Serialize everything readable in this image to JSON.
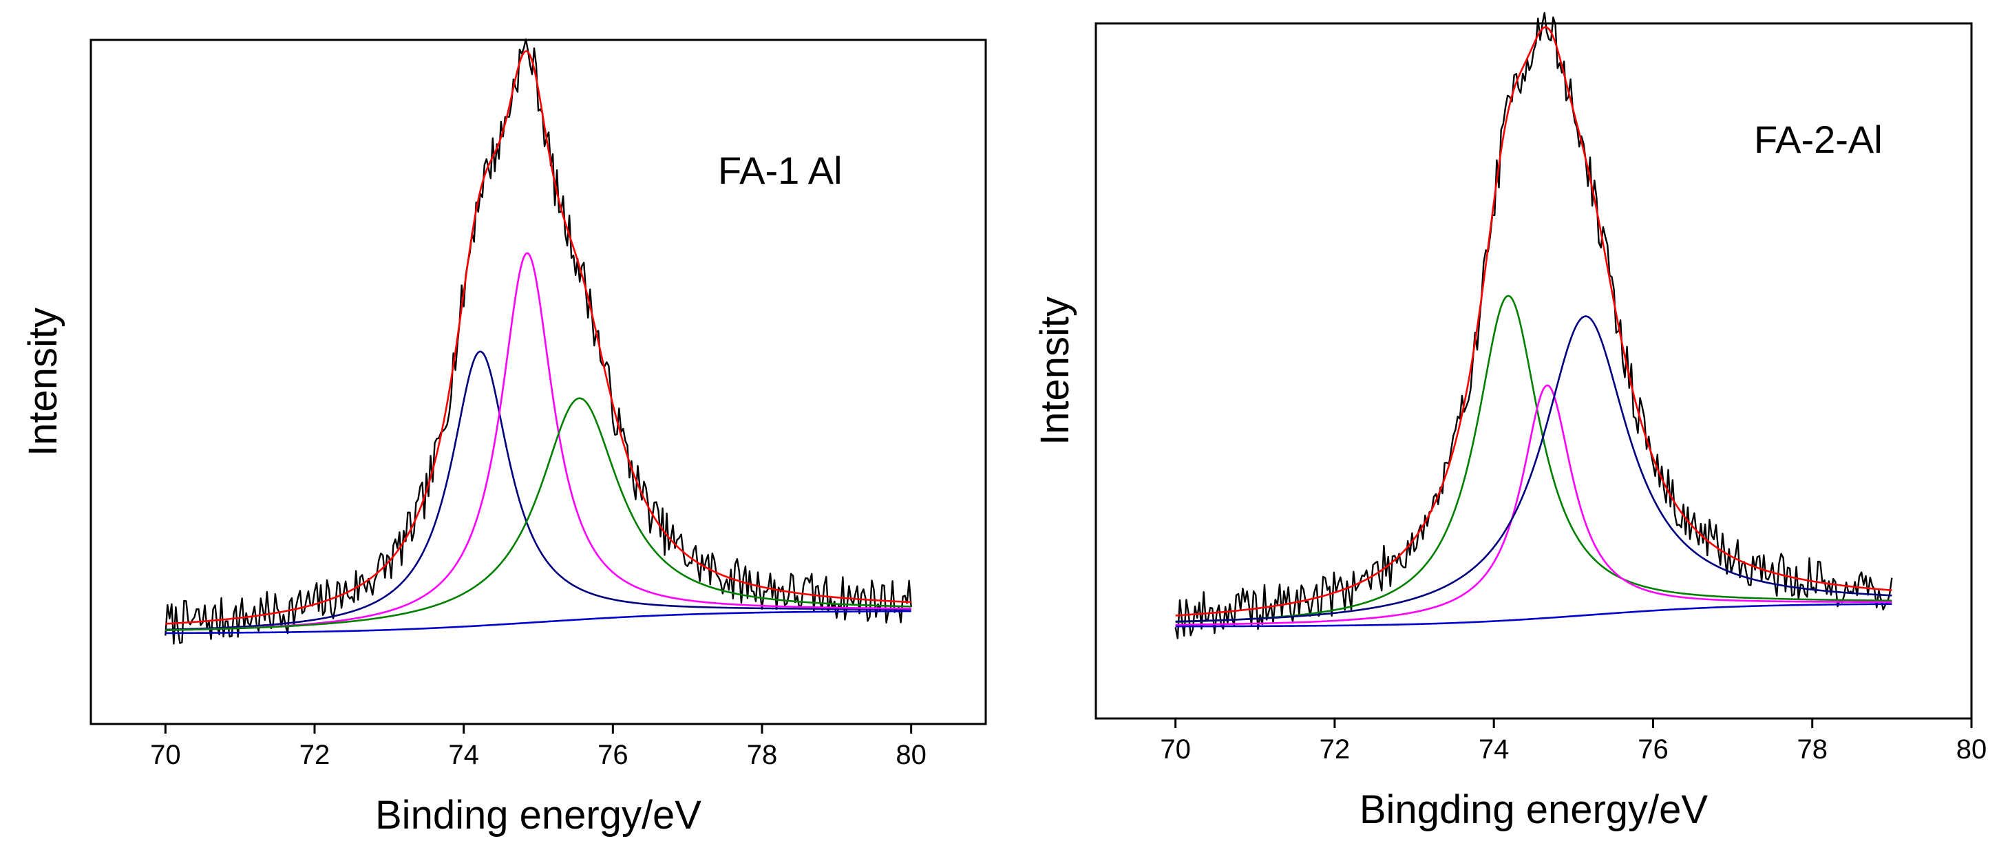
{
  "chart_data": [
    {
      "type": "line",
      "title": "",
      "annotation": "FA-1 Al",
      "xlabel": "Binding energy/eV",
      "ylabel": "Intensity",
      "xlim": [
        69,
        81
      ],
      "xticks": [
        70,
        72,
        74,
        76,
        78,
        80
      ],
      "ylim": [
        -0.18,
        1.18
      ],
      "show_yticks": false,
      "grid": false,
      "legend": "none",
      "x_range": [
        70,
        80
      ],
      "background": {
        "start": 0.0,
        "end": 0.045,
        "center": 75.0,
        "width": 1.2,
        "color": "#0000cc"
      },
      "components": [
        {
          "center": 74.22,
          "fwhm": 0.95,
          "height": 0.545,
          "color": "#000080"
        },
        {
          "center": 74.85,
          "fwhm": 0.86,
          "height": 0.735,
          "color": "#ff00ff"
        },
        {
          "center": 75.55,
          "fwhm": 1.3,
          "height": 0.44,
          "color": "#008000"
        }
      ],
      "envelope_color": "#ff0000",
      "raw_color": "#000000",
      "raw_points": 360,
      "noise": 0.045,
      "seed": 7
    },
    {
      "type": "line",
      "title": "",
      "annotation": "FA-2-Al",
      "xlabel": "Bingding energy/eV",
      "ylabel": "Intensity",
      "xlim": [
        69,
        80
      ],
      "xticks": [
        70,
        72,
        74,
        76,
        78,
        80
      ],
      "ylim": [
        -0.18,
        1.18
      ],
      "show_yticks": false,
      "grid": false,
      "legend": "none",
      "x_range": [
        70,
        79
      ],
      "background": {
        "start": 0.0,
        "end": 0.045,
        "center": 75.2,
        "width": 1.0,
        "color": "#0000cc"
      },
      "components": [
        {
          "center": 74.18,
          "fwhm": 0.98,
          "height": 0.635,
          "color": "#008000"
        },
        {
          "center": 74.67,
          "fwhm": 0.78,
          "height": 0.455,
          "color": "#ff00ff"
        },
        {
          "center": 75.15,
          "fwhm": 1.32,
          "height": 0.585,
          "color": "#000080"
        }
      ],
      "envelope_color": "#ff0000",
      "raw_color": "#000000",
      "raw_points": 330,
      "noise": 0.045,
      "seed": 19
    }
  ]
}
